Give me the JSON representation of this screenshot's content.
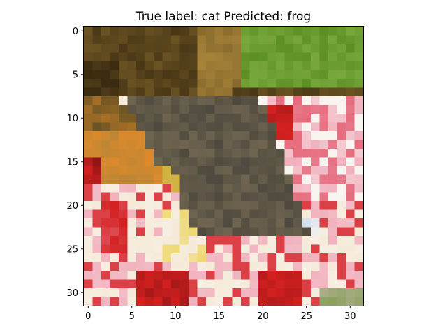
{
  "figure": {
    "title": "True label: cat Predicted: frog",
    "x_ticks": [
      "0",
      "5",
      "10",
      "15",
      "20",
      "25",
      "30"
    ],
    "y_ticks": [
      "0",
      "5",
      "10",
      "15",
      "20",
      "25",
      "30"
    ]
  },
  "image": {
    "grid_size": [
      32,
      32
    ],
    "palette": {
      "dark_brown": "#3a2a10",
      "olive_brown": "#6b5423",
      "tan": "#a8843a",
      "grass_green": "#5b8f24",
      "light_green": "#78a83c",
      "gray_brown": "#6f6550",
      "dark_gray": "#46423a",
      "orange": "#e08a2a",
      "yellow": "#ecd24a",
      "red": "#d42020",
      "dark_red": "#8a1414",
      "pink": "#ec8aa0",
      "light_pink": "#f4cad0",
      "cream": "#f6ead8",
      "white": "#f8f4f0",
      "pale_blue": "#cddcec",
      "sage": "#a8ac84"
    }
  }
}
